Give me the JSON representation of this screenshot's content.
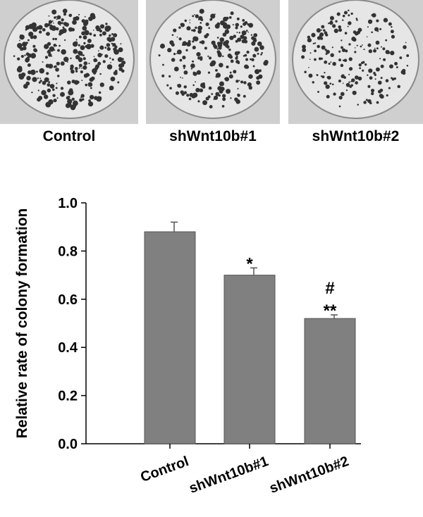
{
  "panels": {
    "labels": [
      "Control",
      "shWnt10b#1",
      "shWnt10b#2"
    ]
  },
  "chart_data": {
    "type": "bar",
    "y_label": "Relative rate of colony formation",
    "categories": [
      "Control",
      "shWnt10b#1",
      "shWnt10b#2"
    ],
    "values": [
      0.88,
      0.7,
      0.52
    ],
    "errors": [
      0.04,
      0.03,
      0.015
    ],
    "color": "#808080",
    "ylim": [
      0,
      1.0
    ],
    "yticks": [
      {
        "value": 0,
        "label": "0.0"
      },
      0.2,
      0.4,
      0.6,
      0.8,
      {
        "value": 1.0,
        "label": "1.0"
      }
    ],
    "annotations": [
      {
        "text": "*",
        "x": "shWnt10b#1"
      },
      {
        "text": "**",
        "x": "shWnt10b#2"
      },
      {
        "text": "#",
        "x": "shWnt10b#2"
      }
    ]
  }
}
